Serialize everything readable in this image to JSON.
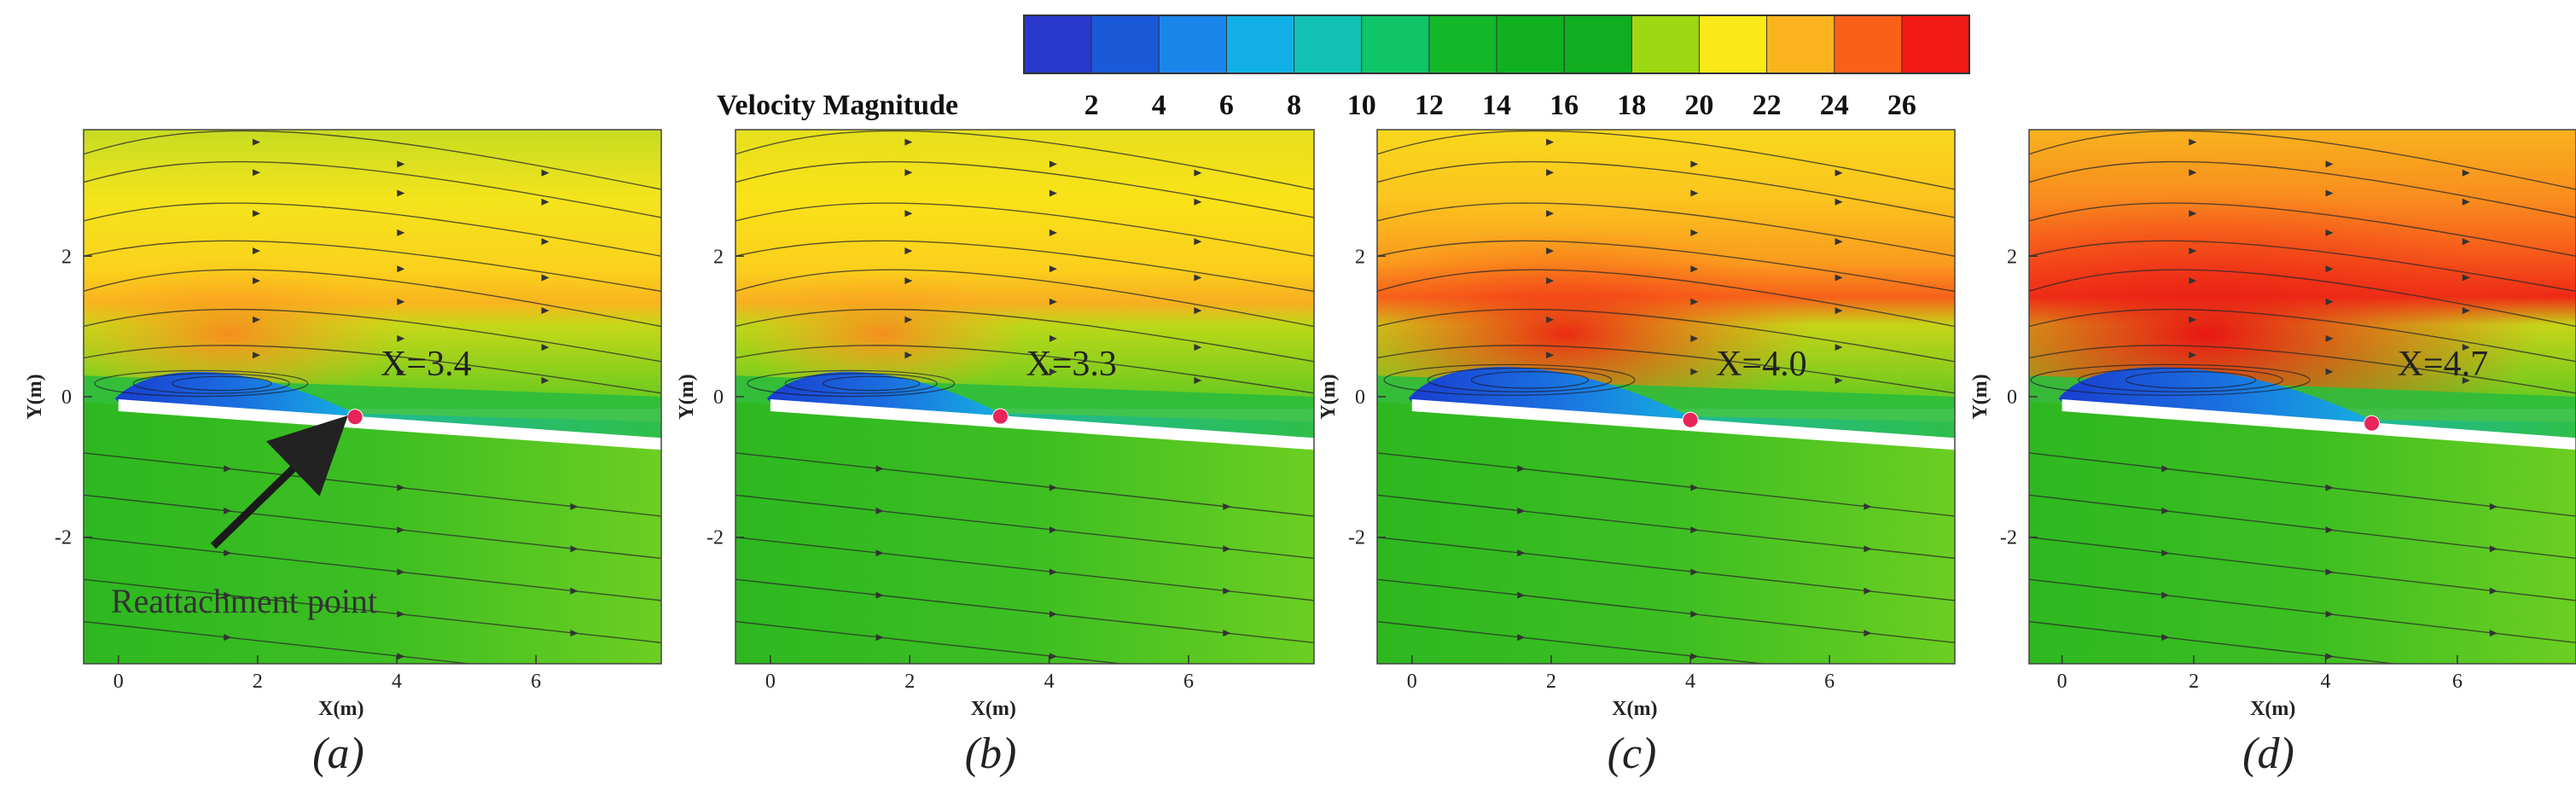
{
  "chart_data": {
    "type": "contour",
    "colorbar": {
      "title": "Velocity Magnitude",
      "ticks": [
        2,
        4,
        6,
        8,
        10,
        12,
        14,
        16,
        18,
        20,
        22,
        24,
        26
      ],
      "range": [
        0,
        27
      ],
      "colors": [
        "#2838cc",
        "#1a5ad8",
        "#1a86ea",
        "#12b0e6",
        "#12c2b4",
        "#10c468",
        "#12b828",
        "#10b020",
        "#10ae20",
        "#9ed812",
        "#fae818",
        "#fbb41e",
        "#fb6018",
        "#f21a14"
      ]
    },
    "panels": [
      {
        "label": "(a)",
        "xlabel": "X(m)",
        "ylabel": "Y(m)",
        "xticks": [
          "0",
          "2",
          "4",
          "6"
        ],
        "yticks": [
          "2",
          "0",
          "-2"
        ],
        "xlim": [
          -0.5,
          7.8
        ],
        "ylim": [
          -3.8,
          3.8
        ],
        "reattachment_x": 3.4,
        "annotation": "X=3.4",
        "callout": "Reattachment point"
      },
      {
        "label": "(b)",
        "xlabel": "X(m)",
        "ylabel": "Y(m)",
        "xticks": [
          "0",
          "2",
          "4",
          "6"
        ],
        "yticks": [
          "2",
          "0",
          "-2"
        ],
        "xlim": [
          -0.5,
          7.8
        ],
        "ylim": [
          -3.8,
          3.8
        ],
        "reattachment_x": 3.3,
        "annotation": "X=3.3"
      },
      {
        "label": "(c)",
        "xlabel": "X(m)",
        "ylabel": "Y(m)",
        "xticks": [
          "0",
          "2",
          "4",
          "6"
        ],
        "yticks": [
          "2",
          "0",
          "-2"
        ],
        "xlim": [
          -0.5,
          7.8
        ],
        "ylim": [
          -3.8,
          3.8
        ],
        "reattachment_x": 4.0,
        "annotation": "X=4.0"
      },
      {
        "label": "(d)",
        "xlabel": "X(m)",
        "ylabel": "Y(m)",
        "xticks": [
          "0",
          "2",
          "4",
          "6"
        ],
        "yticks": [
          "2",
          "0",
          "-2"
        ],
        "xlim": [
          -0.5,
          7.8
        ],
        "ylim": [
          -3.8,
          3.8
        ],
        "reattachment_x": 4.7,
        "annotation": "X=4.7"
      }
    ]
  }
}
